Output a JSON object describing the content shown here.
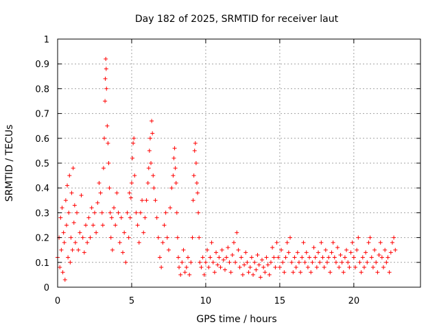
{
  "chart_data": {
    "type": "scatter",
    "title": "Day 182 of 2025, SRMTID for receiver laut",
    "xlabel": "GPS time / hours",
    "ylabel": "SRMTID / TECUs",
    "xlim": [
      0,
      24.5
    ],
    "ylim": [
      0,
      1
    ],
    "xticks": [
      0,
      5,
      10,
      15,
      20
    ],
    "xtick_labels": [
      "0",
      "5",
      "10",
      "15",
      "20"
    ],
    "yticks": [
      0,
      0.1,
      0.2,
      0.3,
      0.4,
      0.5,
      0.6,
      0.7,
      0.8,
      0.9,
      1
    ],
    "ytick_labels": [
      "0",
      "0.1",
      "0.2",
      "0.3",
      "0.4",
      "0.5",
      "0.6",
      "0.7",
      "0.8",
      "0.9",
      "1"
    ],
    "grid": true,
    "marker": "+",
    "color": "#ff0000",
    "series": [
      {
        "name": "SRMTID",
        "points": [
          [
            0.0,
            0.12
          ],
          [
            0.1,
            0.2
          ],
          [
            0.15,
            0.08
          ],
          [
            0.2,
            0.28
          ],
          [
            0.25,
            0.15
          ],
          [
            0.3,
            0.32
          ],
          [
            0.35,
            0.06
          ],
          [
            0.4,
            0.22
          ],
          [
            0.45,
            0.18
          ],
          [
            0.5,
            0.03
          ],
          [
            0.55,
            0.35
          ],
          [
            0.6,
            0.25
          ],
          [
            0.65,
            0.41
          ],
          [
            0.7,
            0.12
          ],
          [
            0.75,
            0.3
          ],
          [
            0.8,
            0.45
          ],
          [
            0.85,
            0.1
          ],
          [
            0.9,
            0.2
          ],
          [
            0.95,
            0.38
          ],
          [
            1.0,
            0.15
          ],
          [
            1.05,
            0.48
          ],
          [
            1.1,
            0.26
          ],
          [
            1.15,
            0.33
          ],
          [
            1.2,
            0.18
          ],
          [
            1.3,
            0.3
          ],
          [
            1.4,
            0.15
          ],
          [
            1.5,
            0.22
          ],
          [
            1.6,
            0.37
          ],
          [
            1.7,
            0.2
          ],
          [
            1.8,
            0.14
          ],
          [
            1.9,
            0.25
          ],
          [
            2.0,
            0.18
          ],
          [
            2.1,
            0.28
          ],
          [
            2.2,
            0.2
          ],
          [
            2.3,
            0.32
          ],
          [
            2.4,
            0.25
          ],
          [
            2.5,
            0.3
          ],
          [
            2.6,
            0.22
          ],
          [
            2.7,
            0.34
          ],
          [
            2.8,
            0.42
          ],
          [
            2.9,
            0.38
          ],
          [
            3.0,
            0.3
          ],
          [
            3.05,
            0.25
          ],
          [
            3.1,
            0.48
          ],
          [
            3.15,
            0.6
          ],
          [
            3.2,
            0.75
          ],
          [
            3.22,
            0.84
          ],
          [
            3.25,
            0.92
          ],
          [
            3.28,
            0.88
          ],
          [
            3.3,
            0.8
          ],
          [
            3.35,
            0.65
          ],
          [
            3.4,
            0.58
          ],
          [
            3.45,
            0.5
          ],
          [
            3.5,
            0.4
          ],
          [
            3.55,
            0.3
          ],
          [
            3.6,
            0.2
          ],
          [
            3.65,
            0.28
          ],
          [
            3.7,
            0.15
          ],
          [
            3.8,
            0.32
          ],
          [
            3.9,
            0.25
          ],
          [
            4.0,
            0.38
          ],
          [
            4.1,
            0.3
          ],
          [
            4.2,
            0.18
          ],
          [
            4.3,
            0.28
          ],
          [
            4.4,
            0.14
          ],
          [
            4.5,
            0.22
          ],
          [
            4.6,
            0.1
          ],
          [
            4.7,
            0.3
          ],
          [
            4.8,
            0.2
          ],
          [
            4.85,
            0.38
          ],
          [
            4.9,
            0.28
          ],
          [
            4.95,
            0.36
          ],
          [
            5.0,
            0.42
          ],
          [
            5.05,
            0.52
          ],
          [
            5.1,
            0.58
          ],
          [
            5.15,
            0.6
          ],
          [
            5.2,
            0.45
          ],
          [
            5.3,
            0.3
          ],
          [
            5.4,
            0.25
          ],
          [
            5.5,
            0.18
          ],
          [
            5.6,
            0.3
          ],
          [
            5.7,
            0.35
          ],
          [
            5.8,
            0.22
          ],
          [
            5.9,
            0.28
          ],
          [
            6.0,
            0.35
          ],
          [
            6.1,
            0.42
          ],
          [
            6.15,
            0.48
          ],
          [
            6.2,
            0.55
          ],
          [
            6.25,
            0.6
          ],
          [
            6.3,
            0.5
          ],
          [
            6.35,
            0.67
          ],
          [
            6.4,
            0.62
          ],
          [
            6.45,
            0.45
          ],
          [
            6.5,
            0.4
          ],
          [
            6.6,
            0.35
          ],
          [
            6.7,
            0.28
          ],
          [
            6.8,
            0.2
          ],
          [
            6.9,
            0.12
          ],
          [
            7.0,
            0.08
          ],
          [
            7.1,
            0.18
          ],
          [
            7.2,
            0.25
          ],
          [
            7.3,
            0.3
          ],
          [
            7.4,
            0.2
          ],
          [
            7.5,
            0.15
          ],
          [
            7.6,
            0.32
          ],
          [
            7.7,
            0.4
          ],
          [
            7.8,
            0.45
          ],
          [
            7.85,
            0.52
          ],
          [
            7.9,
            0.56
          ],
          [
            7.95,
            0.48
          ],
          [
            8.0,
            0.42
          ],
          [
            8.05,
            0.3
          ],
          [
            8.1,
            0.2
          ],
          [
            8.15,
            0.12
          ],
          [
            8.2,
            0.08
          ],
          [
            8.3,
            0.05
          ],
          [
            8.4,
            0.1
          ],
          [
            8.5,
            0.15
          ],
          [
            8.6,
            0.06
          ],
          [
            8.7,
            0.08
          ],
          [
            8.8,
            0.12
          ],
          [
            8.9,
            0.05
          ],
          [
            9.0,
            0.1
          ],
          [
            9.1,
            0.2
          ],
          [
            9.15,
            0.35
          ],
          [
            9.2,
            0.45
          ],
          [
            9.25,
            0.55
          ],
          [
            9.3,
            0.58
          ],
          [
            9.35,
            0.5
          ],
          [
            9.4,
            0.42
          ],
          [
            9.45,
            0.38
          ],
          [
            9.5,
            0.3
          ],
          [
            9.55,
            0.2
          ],
          [
            9.6,
            0.1
          ],
          [
            9.7,
            0.08
          ],
          [
            9.8,
            0.12
          ],
          [
            9.9,
            0.05
          ],
          [
            10.0,
            0.1
          ],
          [
            10.1,
            0.15
          ],
          [
            10.2,
            0.08
          ],
          [
            10.3,
            0.12
          ],
          [
            10.4,
            0.18
          ],
          [
            10.5,
            0.1
          ],
          [
            10.6,
            0.06
          ],
          [
            10.7,
            0.14
          ],
          [
            10.8,
            0.09
          ],
          [
            10.9,
            0.12
          ],
          [
            11.0,
            0.08
          ],
          [
            11.1,
            0.15
          ],
          [
            11.2,
            0.11
          ],
          [
            11.3,
            0.07
          ],
          [
            11.4,
            0.12
          ],
          [
            11.5,
            0.16
          ],
          [
            11.6,
            0.1
          ],
          [
            11.7,
            0.06
          ],
          [
            11.8,
            0.13
          ],
          [
            11.9,
            0.18
          ],
          [
            12.0,
            0.1
          ],
          [
            12.1,
            0.22
          ],
          [
            12.2,
            0.15
          ],
          [
            12.3,
            0.08
          ],
          [
            12.4,
            0.12
          ],
          [
            12.5,
            0.05
          ],
          [
            12.6,
            0.09
          ],
          [
            12.7,
            0.14
          ],
          [
            12.8,
            0.1
          ],
          [
            12.9,
            0.06
          ],
          [
            13.0,
            0.08
          ],
          [
            13.1,
            0.12
          ],
          [
            13.2,
            0.05
          ],
          [
            13.3,
            0.1
          ],
          [
            13.4,
            0.07
          ],
          [
            13.5,
            0.13
          ],
          [
            13.6,
            0.09
          ],
          [
            13.7,
            0.04
          ],
          [
            13.8,
            0.11
          ],
          [
            13.9,
            0.08
          ],
          [
            14.0,
            0.06
          ],
          [
            14.1,
            0.12
          ],
          [
            14.2,
            0.09
          ],
          [
            14.3,
            0.05
          ],
          [
            14.4,
            0.1
          ],
          [
            14.5,
            0.16
          ],
          [
            14.6,
            0.12
          ],
          [
            14.7,
            0.08
          ],
          [
            14.8,
            0.18
          ],
          [
            14.9,
            0.12
          ],
          [
            15.0,
            0.08
          ],
          [
            15.1,
            0.15
          ],
          [
            15.2,
            0.1
          ],
          [
            15.3,
            0.06
          ],
          [
            15.4,
            0.12
          ],
          [
            15.5,
            0.18
          ],
          [
            15.6,
            0.14
          ],
          [
            15.7,
            0.2
          ],
          [
            15.8,
            0.1
          ],
          [
            15.9,
            0.06
          ],
          [
            16.0,
            0.12
          ],
          [
            16.1,
            0.08
          ],
          [
            16.2,
            0.14
          ],
          [
            16.3,
            0.1
          ],
          [
            16.4,
            0.06
          ],
          [
            16.5,
            0.12
          ],
          [
            16.6,
            0.18
          ],
          [
            16.7,
            0.1
          ],
          [
            16.8,
            0.14
          ],
          [
            16.9,
            0.08
          ],
          [
            17.0,
            0.12
          ],
          [
            17.1,
            0.06
          ],
          [
            17.2,
            0.1
          ],
          [
            17.3,
            0.16
          ],
          [
            17.4,
            0.12
          ],
          [
            17.5,
            0.08
          ],
          [
            17.6,
            0.14
          ],
          [
            17.7,
            0.1
          ],
          [
            17.8,
            0.18
          ],
          [
            17.9,
            0.12
          ],
          [
            18.0,
            0.08
          ],
          [
            18.1,
            0.15
          ],
          [
            18.2,
            0.1
          ],
          [
            18.3,
            0.12
          ],
          [
            18.4,
            0.06
          ],
          [
            18.5,
            0.14
          ],
          [
            18.6,
            0.18
          ],
          [
            18.7,
            0.12
          ],
          [
            18.8,
            0.1
          ],
          [
            18.9,
            0.16
          ],
          [
            19.0,
            0.08
          ],
          [
            19.1,
            0.13
          ],
          [
            19.2,
            0.1
          ],
          [
            19.3,
            0.06
          ],
          [
            19.4,
            0.12
          ],
          [
            19.5,
            0.15
          ],
          [
            19.6,
            0.1
          ],
          [
            19.7,
            0.08
          ],
          [
            19.8,
            0.14
          ],
          [
            19.9,
            0.18
          ],
          [
            20.0,
            0.12
          ],
          [
            20.1,
            0.08
          ],
          [
            20.2,
            0.15
          ],
          [
            20.3,
            0.2
          ],
          [
            20.4,
            0.1
          ],
          [
            20.5,
            0.06
          ],
          [
            20.6,
            0.12
          ],
          [
            20.7,
            0.08
          ],
          [
            20.8,
            0.14
          ],
          [
            20.9,
            0.1
          ],
          [
            21.0,
            0.18
          ],
          [
            21.1,
            0.2
          ],
          [
            21.2,
            0.12
          ],
          [
            21.3,
            0.08
          ],
          [
            21.4,
            0.15
          ],
          [
            21.5,
            0.1
          ],
          [
            21.6,
            0.06
          ],
          [
            21.7,
            0.13
          ],
          [
            21.8,
            0.18
          ],
          [
            21.9,
            0.12
          ],
          [
            22.0,
            0.08
          ],
          [
            22.1,
            0.15
          ],
          [
            22.2,
            0.1
          ],
          [
            22.3,
            0.12
          ],
          [
            22.4,
            0.06
          ],
          [
            22.5,
            0.14
          ],
          [
            22.6,
            0.18
          ],
          [
            22.7,
            0.2
          ],
          [
            22.8,
            0.15
          ]
        ]
      }
    ]
  }
}
